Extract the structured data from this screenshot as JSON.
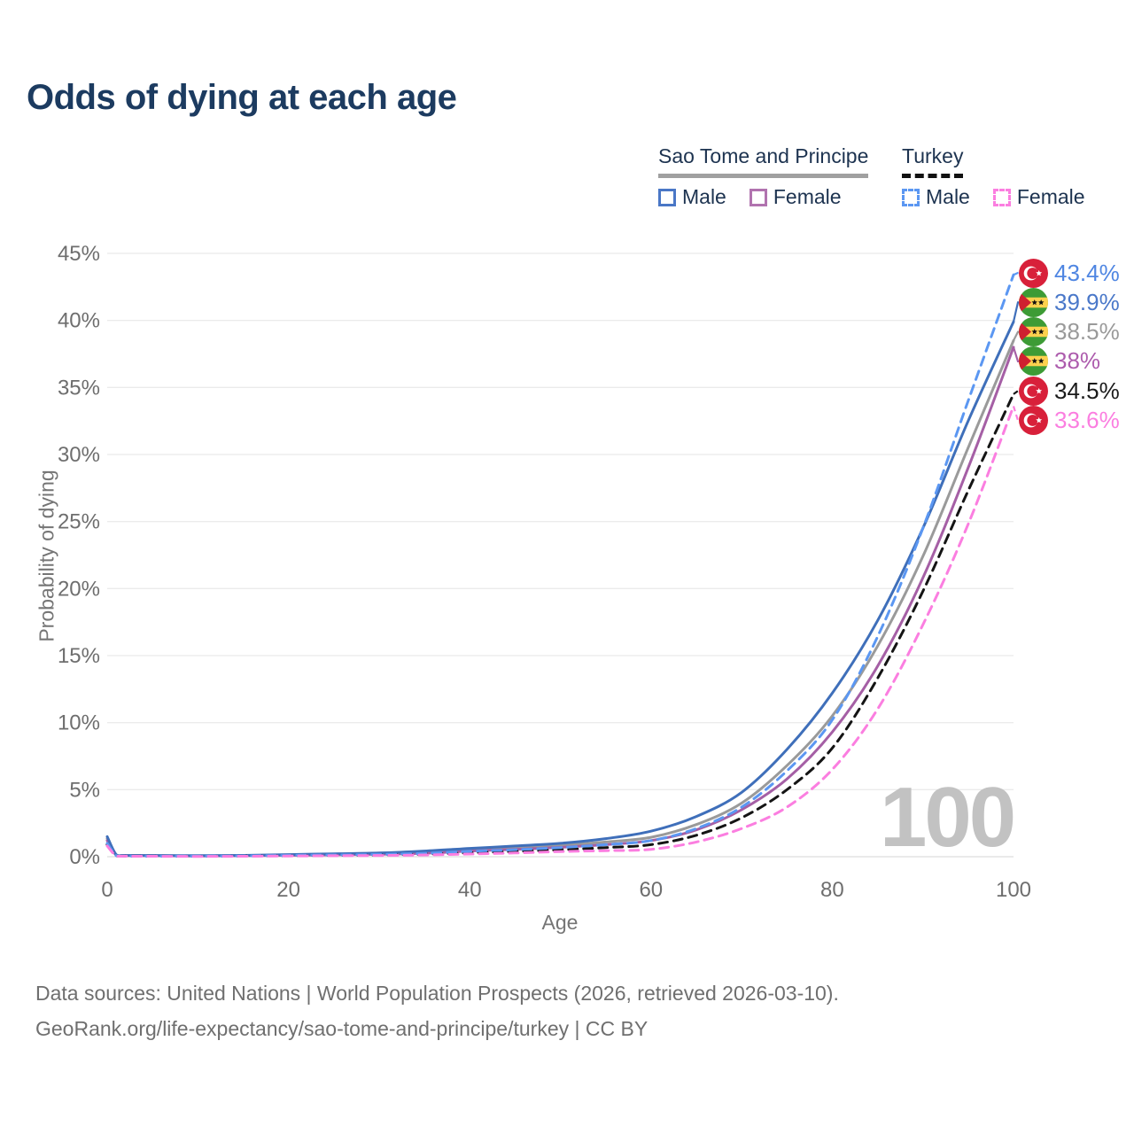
{
  "title": "Odds of dying at each age",
  "legend": {
    "groups": [
      {
        "label": "Sao Tome and Principe",
        "line_color": "#a0a0a0",
        "line_style": "solid",
        "entries": [
          {
            "label": "Male",
            "color": "#4a77c6",
            "dashed": false
          },
          {
            "label": "Female",
            "color": "#b173af",
            "dashed": false
          }
        ]
      },
      {
        "label": "Turkey",
        "line_color": "#111111",
        "line_style": "dashed",
        "entries": [
          {
            "label": "Male",
            "color": "#5b97f2",
            "dashed": true
          },
          {
            "label": "Female",
            "color": "#fb7ee0",
            "dashed": true
          }
        ]
      }
    ]
  },
  "chart": {
    "y_axis_label": "Probability of dying",
    "x_axis_label": "Age",
    "age_counter": "100"
  },
  "chart_data": {
    "type": "line",
    "title": "Odds of dying at each age",
    "xlabel": "Age",
    "ylabel": "Probability of dying",
    "xlim": [
      0,
      100
    ],
    "ylim": [
      0,
      45
    ],
    "x_ticks": [
      0,
      20,
      40,
      60,
      80,
      100
    ],
    "y_ticks_percent": [
      0,
      5,
      10,
      15,
      20,
      25,
      30,
      35,
      40,
      45
    ],
    "grid": true,
    "legend_position": "top-right",
    "ages": [
      0,
      1,
      2,
      5,
      10,
      15,
      20,
      25,
      30,
      35,
      40,
      45,
      50,
      55,
      60,
      65,
      70,
      75,
      80,
      85,
      90,
      95,
      100
    ],
    "series": [
      {
        "key": "stp_t",
        "name": "Sao Tome and Principe — All",
        "color": "#9a9a9a",
        "dashed": false,
        "end_value_pct": 38.5,
        "values": [
          1.35,
          0.13,
          0.09,
          0.08,
          0.06,
          0.08,
          0.13,
          0.18,
          0.23,
          0.33,
          0.5,
          0.65,
          0.85,
          1.1,
          1.45,
          2.4,
          4.0,
          6.8,
          10.5,
          15.7,
          22.4,
          30.5,
          38.5
        ]
      },
      {
        "key": "stp_f",
        "name": "Sao Tome and Principe — Female",
        "color": "#a55fa5",
        "dashed": false,
        "end_value_pct": 38.0,
        "values": [
          1.2,
          0.12,
          0.08,
          0.07,
          0.05,
          0.07,
          0.1,
          0.14,
          0.18,
          0.26,
          0.42,
          0.55,
          0.7,
          0.9,
          1.2,
          2.0,
          3.5,
          5.8,
          9.3,
          14.2,
          20.8,
          29.0,
          38.0
        ]
      },
      {
        "key": "stp_m",
        "name": "Sao Tome and Principe — Male",
        "color": "#3f6fba",
        "dashed": false,
        "end_value_pct": 39.9,
        "values": [
          1.5,
          0.15,
          0.1,
          0.09,
          0.08,
          0.1,
          0.16,
          0.22,
          0.28,
          0.42,
          0.62,
          0.8,
          1.0,
          1.35,
          1.9,
          3.0,
          4.8,
          8.0,
          12.2,
          17.6,
          24.5,
          32.5,
          39.9
        ]
      },
      {
        "key": "tur_t",
        "name": "Turkey — All",
        "color": "#141414",
        "dashed": true,
        "end_value_pct": 34.5,
        "values": [
          0.9,
          0.07,
          0.05,
          0.04,
          0.03,
          0.05,
          0.08,
          0.1,
          0.13,
          0.19,
          0.3,
          0.4,
          0.52,
          0.68,
          0.9,
          1.6,
          2.9,
          5.0,
          8.1,
          13.3,
          19.8,
          27.3,
          34.5
        ]
      },
      {
        "key": "tur_m",
        "name": "Turkey — Male",
        "color": "#5b97f2",
        "dashed": true,
        "end_value_pct": 43.4,
        "values": [
          1.0,
          0.08,
          0.05,
          0.04,
          0.04,
          0.06,
          0.1,
          0.13,
          0.17,
          0.25,
          0.4,
          0.52,
          0.68,
          0.9,
          1.2,
          2.1,
          3.7,
          6.4,
          10.2,
          16.4,
          24.5,
          34.0,
          43.4
        ]
      },
      {
        "key": "tur_f",
        "name": "Turkey — Female",
        "color": "#fb7ee0",
        "dashed": true,
        "end_value_pct": 33.6,
        "values": [
          0.8,
          0.06,
          0.04,
          0.03,
          0.02,
          0.03,
          0.05,
          0.07,
          0.09,
          0.13,
          0.2,
          0.28,
          0.38,
          0.45,
          0.55,
          1.1,
          2.1,
          3.7,
          6.5,
          11.0,
          17.3,
          24.8,
          33.6
        ]
      }
    ]
  },
  "end_labels": [
    {
      "value": "43.4%",
      "series_key": "tur_m",
      "flag": "turkey",
      "text_color": "#4f86e2"
    },
    {
      "value": "39.9%",
      "series_key": "stp_m",
      "flag": "sao-tome",
      "text_color": "#4a78c9"
    },
    {
      "value": "38.5%",
      "series_key": "stp_t",
      "flag": "sao-tome",
      "text_color": "#9a9a9a"
    },
    {
      "value": "38%",
      "series_key": "stp_f",
      "flag": "sao-tome",
      "text_color": "#ad5cad"
    },
    {
      "value": "34.5%",
      "series_key": "tur_t",
      "flag": "turkey",
      "text_color": "#1a1a1a"
    },
    {
      "value": "33.6%",
      "series_key": "tur_f",
      "flag": "turkey",
      "text_color": "#fb7ee0"
    }
  ],
  "source": {
    "line1": "Data sources: United Nations | World Population Prospects (2026, retrieved 2026-03-10).",
    "line2": "GeoRank.org/life-expectancy/sao-tome-and-principe/turkey | CC BY"
  }
}
